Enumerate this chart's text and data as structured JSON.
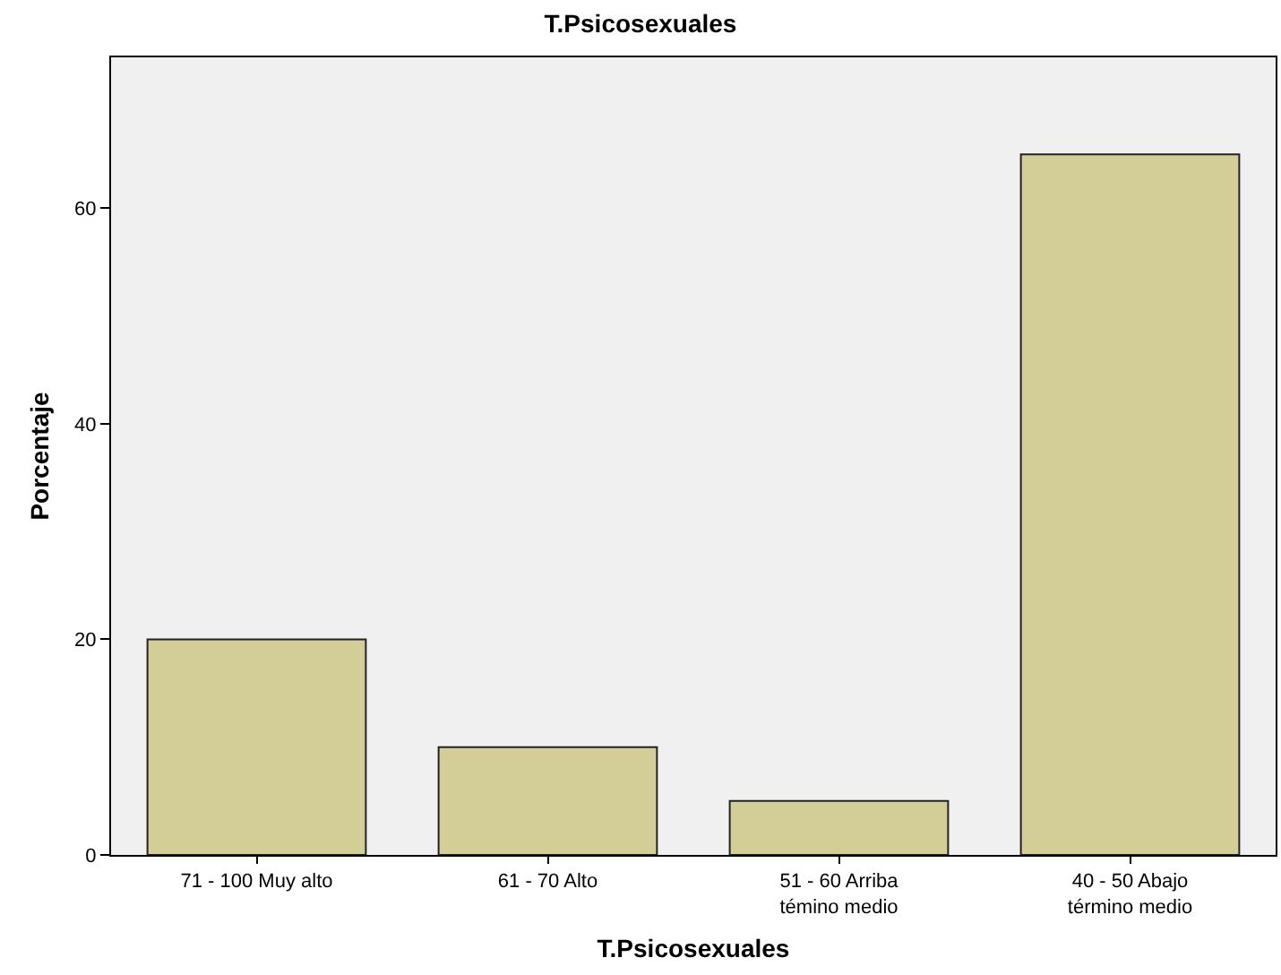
{
  "chart_data": {
    "type": "bar",
    "title": "T.Psicosexuales",
    "xlabel": "T.Psicosexuales",
    "ylabel": "Porcentaje",
    "categories": [
      "71 - 100 Muy alto",
      "61 - 70 Alto",
      "51 - 60 Arriba témino medio",
      "40 - 50 Abajo término medio"
    ],
    "values": [
      20,
      10,
      5,
      65
    ],
    "color": "#d3ce97",
    "ylim": [
      0,
      74
    ],
    "yticks": [
      0,
      20,
      40,
      60
    ],
    "grid": false
  }
}
